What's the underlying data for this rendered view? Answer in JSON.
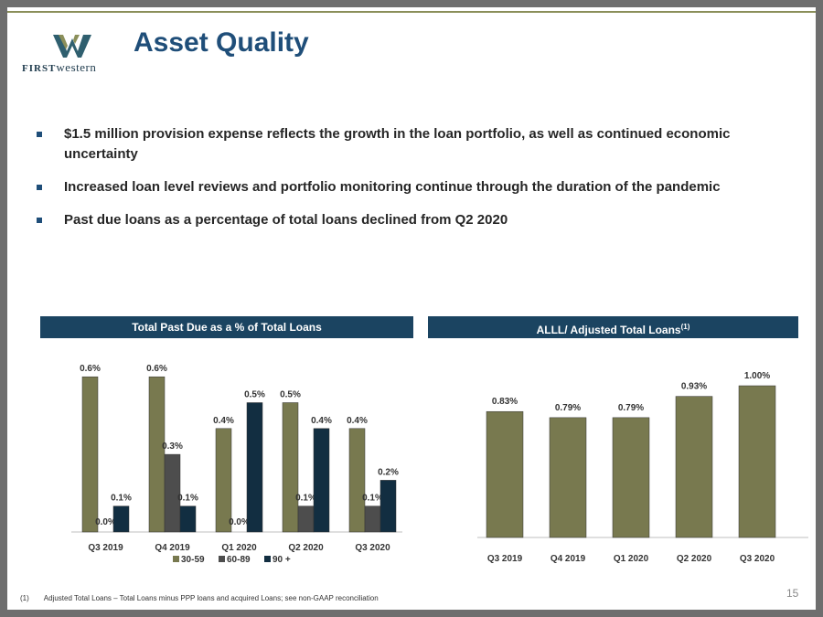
{
  "logo": {
    "text_bold": "FIRST",
    "text_rest": "western"
  },
  "title": "Asset Quality",
  "bullets": [
    "$1.5 million provision expense reflects the growth in the loan portfolio, as well as continued economic uncertainty",
    "Increased loan level reviews and portfolio monitoring continue through the duration of the pandemic",
    "Past due loans as a percentage of total loans declined from Q2 2020"
  ],
  "colors": {
    "c3059": "#78794f",
    "c6089": "#4d4d4d",
    "c90": "#122e41",
    "header": "#1b4461",
    "title": "#1f4e79"
  },
  "chart_data": [
    {
      "type": "bar",
      "header": "Total Past Due as a % of Total Loans",
      "categories": [
        "Q3 2019",
        "Q4 2019",
        "Q1 2020",
        "Q2 2020",
        "Q3 2020"
      ],
      "series": [
        {
          "name": "30-59",
          "values": [
            0.6,
            0.6,
            0.4,
            0.5,
            0.4
          ],
          "labels": [
            "0.6%",
            "0.6%",
            "0.4%",
            "0.5%",
            "0.4%"
          ]
        },
        {
          "name": "60-89",
          "values": [
            0.0,
            0.3,
            0.0,
            0.1,
            0.1
          ],
          "labels": [
            "0.0%",
            "0.3%",
            "0.0%",
            "0.1%",
            "0.1%"
          ]
        },
        {
          "name": "90 +",
          "values": [
            0.1,
            0.1,
            0.5,
            0.4,
            0.2
          ],
          "labels": [
            "0.1%",
            "0.1%",
            "0.5%",
            "0.4%",
            "0.2%"
          ]
        }
      ],
      "legend_position": "bottom"
    },
    {
      "type": "bar",
      "header": "ALLL/ Adjusted Total Loans",
      "header_sup": "(1)",
      "categories": [
        "Q3 2019",
        "Q4 2019",
        "Q1 2020",
        "Q2 2020",
        "Q3 2020"
      ],
      "values": [
        0.83,
        0.79,
        0.79,
        0.93,
        1.0
      ],
      "labels": [
        "0.83%",
        "0.79%",
        "0.79%",
        "0.93%",
        "1.00%"
      ]
    }
  ],
  "footnote": {
    "num": "(1)",
    "text": "Adjusted Total Loans – Total Loans minus PPP loans and acquired Loans; see non-GAAP reconciliation"
  },
  "page_number": "15"
}
